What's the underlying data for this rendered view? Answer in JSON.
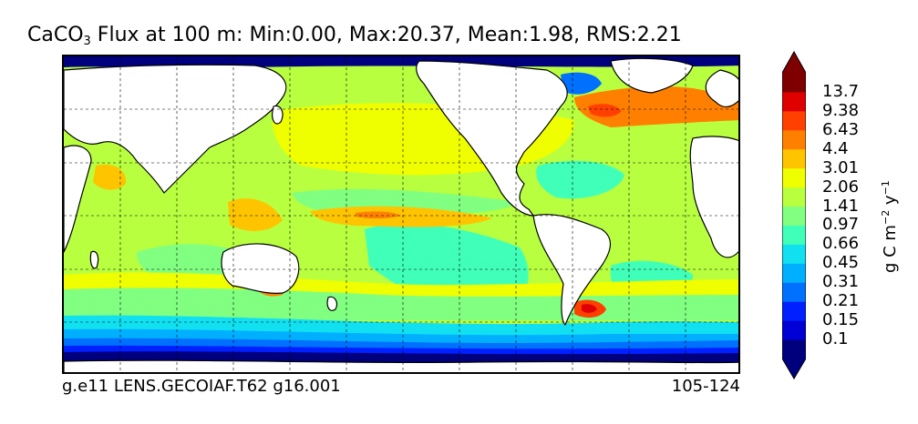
{
  "title": {
    "prefix": "CaCO",
    "subscript": "3",
    "rest": " Flux at 100 m: Min:0.00, Max:20.37, Mean:1.98, RMS:2.21"
  },
  "footer": {
    "left": "g.e11 LENS.GECOIAF.T62 g16.001",
    "right": "105-124"
  },
  "colorbar": {
    "levels_bottom_to_top": [
      "0.1",
      "0.15",
      "0.21",
      "0.31",
      "0.45",
      "0.66",
      "0.97",
      "1.41",
      "2.06",
      "3.01",
      "4.4",
      "6.43",
      "9.38",
      "13.7"
    ],
    "colors_bottom_to_top": [
      "#00007f",
      "#0000d5",
      "#0020ff",
      "#0070ff",
      "#00b0ff",
      "#10e0f0",
      "#40ffb8",
      "#80ff80",
      "#b8ff40",
      "#f0ff00",
      "#ffc400",
      "#ff8000",
      "#ff4000",
      "#df0000",
      "#7f0000"
    ],
    "under_color": "#00007f",
    "over_color": "#7f0000",
    "units": {
      "base": "g C m",
      "m_exp": "−2",
      "mid": " y",
      "y_exp": "−1"
    }
  },
  "map": {
    "projection": "equirectangular, Pacific-centered",
    "gridlines": "dashed",
    "land_color": "#ffffff",
    "coast_color": "#000000"
  }
}
